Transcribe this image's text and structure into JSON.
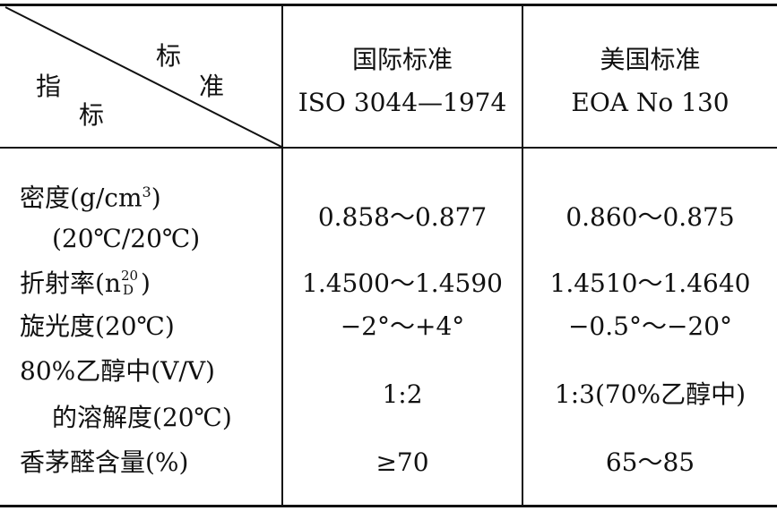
{
  "header": {
    "corner_top": "标",
    "corner_mid": "准",
    "corner_left": "指",
    "corner_bottom": "标",
    "col1_line1": "国际标准",
    "col1_line2": "ISO 3044—1974",
    "col2_line1": "美国标准",
    "col2_line2": "EOA No 130"
  },
  "rows": [
    {
      "label_line1": "密度(g/cm",
      "label_sup": "3",
      "label_line1_end": ")",
      "label_line2": "(20℃/20℃)",
      "iso": "0.858～0.877",
      "eoa": "0.860～0.875"
    },
    {
      "label_pre": "折射率(n",
      "label_sup": "20",
      "label_sub": "D",
      "label_end": ")",
      "iso": "1.4500～1.4590",
      "eoa": "1.4510～1.4640"
    },
    {
      "label": "旋光度(20℃)",
      "iso": "−2°～+4°",
      "eoa": "−0.5°～−20°"
    },
    {
      "label_line1": "80%乙醇中(V/V)",
      "label_line2": "的溶解度(20℃)",
      "iso": "1:2",
      "eoa": "1:3(70%乙醇中)"
    },
    {
      "label": "香茅醛含量(%)",
      "iso": "≥70",
      "eoa": "65～85"
    }
  ]
}
